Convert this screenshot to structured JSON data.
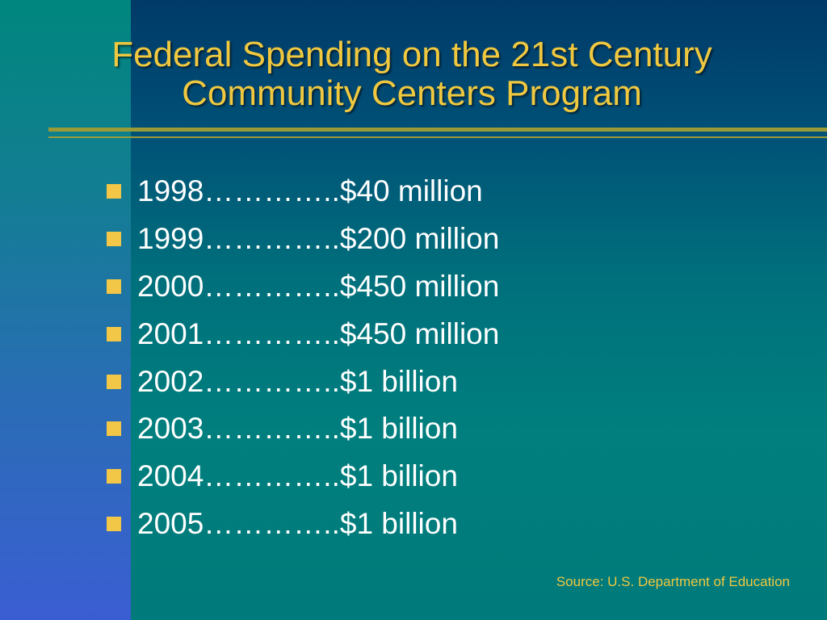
{
  "slide": {
    "title_line1": "Federal Spending on the 21st Century",
    "title_line2": "Community Centers Program",
    "bullets": [
      "1998…………..$40 million",
      "1999…………..$200 million",
      "2000…………..$450 million",
      "2001…………..$450 million",
      "2002…………..$1 billion",
      "2003…………..$1 billion",
      "2004…………..$1 billion",
      "2005…………..$1 billion"
    ],
    "source": "Source: U.S. Department of Education"
  },
  "colors": {
    "title": "#f0c840",
    "bullet_marker": "#f2c747",
    "body_text": "#ffffff",
    "rule": "#9a9a38"
  },
  "icons": {
    "bullet_marker": "square-bullet-icon"
  }
}
